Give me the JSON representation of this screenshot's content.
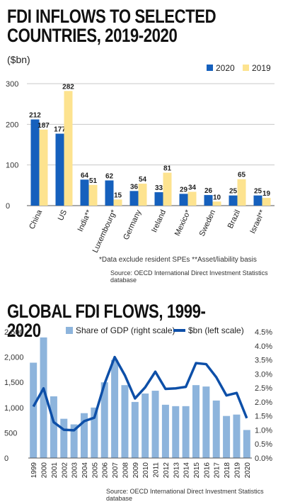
{
  "titles": {
    "chart1": "FDI INFLOWS TO SELECTED COUNTRIES, 2019-2020",
    "chart1_line1": "FDI INFLOWS TO SELECTED",
    "chart1_line2": "COUNTRIES, 2019-2020",
    "chart1_unit": "($bn)",
    "chart2": "GLOBAL FDI FLOWS, 1999-2020"
  },
  "notes": {
    "chart1_footnote": "*Data exclude resident SPEs   **Asset/liability basis",
    "chart1_source": "Source: OECD International Direct Investment Statistics database",
    "chart2_source": "Source: OECD International Direct Investment Statistics database"
  },
  "colors": {
    "blue": "#1560bd",
    "yellow": "#fde38f",
    "lightblue": "#8db4dc",
    "line": "#0d4fa8"
  },
  "chart_data": [
    {
      "type": "bar",
      "title": "FDI INFLOWS TO SELECTED COUNTRIES, 2019-2020",
      "ylabel": "($bn)",
      "ylim": [
        0,
        300
      ],
      "yticks": [
        0,
        100,
        200,
        300
      ],
      "categories": [
        "China",
        "US",
        "India**",
        "Luxembourg*",
        "Germany",
        "Ireland",
        "Mexico*",
        "Sweden",
        "Brazil",
        "Israel**"
      ],
      "series": [
        {
          "name": "2020",
          "color": "#1560bd",
          "values": [
            212,
            177,
            64,
            62,
            36,
            33,
            29,
            26,
            25,
            25
          ]
        },
        {
          "name": "2019",
          "color": "#fde38f",
          "values": [
            187,
            282,
            51,
            15,
            54,
            81,
            34,
            10,
            65,
            19
          ]
        }
      ],
      "legend": "top-right"
    },
    {
      "type": "bar+line",
      "title": "GLOBAL FDI FLOWS, 1999-2020",
      "categories": [
        "1999",
        "2000",
        "2001",
        "2002",
        "2003",
        "2004",
        "2005",
        "2006",
        "2007",
        "2008",
        "2009",
        "2010",
        "2011",
        "2012",
        "2013",
        "2014",
        "2015",
        "2016",
        "2017",
        "2018",
        "2019",
        "2020"
      ],
      "series": [
        {
          "name": "Share of GDP (right scale)",
          "type": "bar",
          "axis": "right",
          "color": "#8db4dc",
          "values": [
            3.4,
            4.3,
            2.2,
            1.4,
            1.2,
            1.6,
            1.8,
            2.7,
            3.5,
            2.6,
            2.0,
            2.3,
            2.4,
            1.9,
            1.85,
            1.85,
            2.6,
            2.55,
            2.05,
            1.5,
            1.55,
            1.0
          ]
        },
        {
          "name": "$bn (left scale)",
          "type": "line",
          "axis": "left",
          "color": "#0d4fa8",
          "values": [
            1020,
            1380,
            710,
            560,
            550,
            730,
            800,
            1470,
            2000,
            1640,
            1180,
            1400,
            1710,
            1370,
            1380,
            1410,
            1880,
            1860,
            1600,
            1240,
            1290,
            790
          ]
        }
      ],
      "ylim_left": [
        0,
        2500
      ],
      "yticks_left": [
        0,
        500,
        1000,
        1500,
        2000,
        2500
      ],
      "yticks_left_labels": [
        "0",
        "500",
        "1,000",
        "1,500",
        "2,000",
        "2,500"
      ],
      "ylim_right": [
        0,
        4.5
      ],
      "yticks_right": [
        0,
        0.5,
        1.0,
        1.5,
        2.0,
        2.5,
        3.0,
        3.5,
        4.0,
        4.5
      ],
      "yticks_right_labels": [
        "0.0%",
        "0.5%",
        "1.0%",
        "1.5%",
        "2.0%",
        "2.5%",
        "3.0%",
        "3.5%",
        "4.0%",
        "4.5%"
      ],
      "legend": "top"
    }
  ]
}
